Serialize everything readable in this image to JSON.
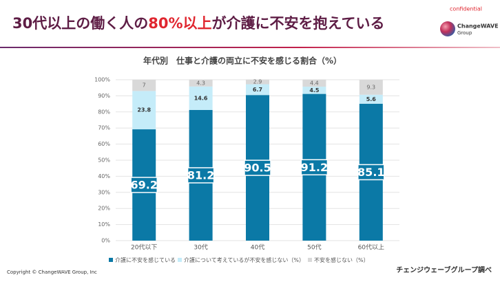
{
  "header": {
    "title": [
      "30代以上の働く人の",
      "80%以上",
      "が介護に不安を抱えている"
    ],
    "confidential": "confidential",
    "logo": [
      "ChangeWAVE",
      "Group"
    ]
  },
  "chart_data": {
    "type": "bar",
    "stacked": true,
    "title": "年代別　仕事と介護の両立に不安を感じる割合（%）",
    "categories": [
      "20代以下",
      "30代",
      "40代",
      "50代",
      "60代以上"
    ],
    "series": [
      {
        "name": "介護に不安を感じている",
        "color": "#0b79a6",
        "values": [
          69.2,
          81.2,
          90.5,
          91.2,
          85.1
        ]
      },
      {
        "name": "介護について考えているが不安を感じない（%）",
        "color": "#c5ecf9",
        "values": [
          23.8,
          14.6,
          6.7,
          4.5,
          5.6
        ]
      },
      {
        "name": "不安を感じない（%）",
        "color": "#d9d9d9",
        "values": [
          7,
          4.3,
          2.9,
          4.4,
          9.3
        ]
      }
    ],
    "ylim": [
      0,
      100
    ],
    "yticks": [
      {
        "value": 0,
        "label": "0%"
      },
      {
        "value": 10,
        "label": "10%"
      },
      {
        "value": 20,
        "label": "20%"
      },
      {
        "value": 30,
        "label": "30%"
      },
      {
        "value": 40,
        "label": "40%"
      },
      {
        "value": 50,
        "label": "50%"
      },
      {
        "value": 60,
        "label": "60%"
      },
      {
        "value": 70,
        "label": "70%"
      },
      {
        "value": 80,
        "label": "80%"
      },
      {
        "value": 90,
        "label": "90%"
      },
      {
        "value": 100,
        "label": "100%"
      }
    ],
    "grid": true,
    "legend": "bottom"
  },
  "footer": {
    "copyright": "Copyright © ChangeWAVE Group, Inc",
    "source": "チェンジウェーブグループ調べ"
  }
}
